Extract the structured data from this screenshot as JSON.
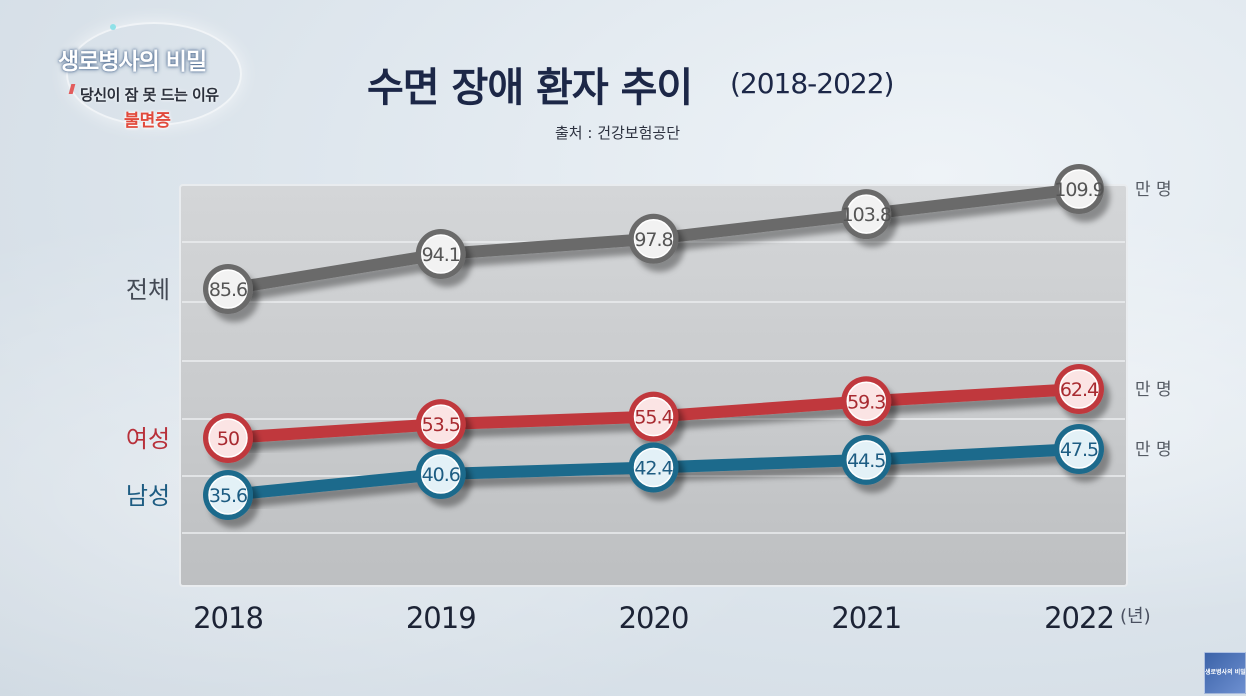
{
  "program": {
    "title": "생로병사의 비밀",
    "subtitle": "당신이 잠 못 드는 이유",
    "topic": "불면증"
  },
  "page_title": "수면 장애 환자 추이",
  "title_range": "(2018-2022)",
  "source": "출처 : 건강보험공단",
  "thumbnail_label": "생로병사의 비밀",
  "colors": {
    "total": "#6a6a6a",
    "female": "#c0393d",
    "male": "#1d6a8c",
    "female_label": "#b8303a",
    "male_label": "#1d5c82",
    "total_label": "#444a55"
  },
  "chart_data": {
    "type": "line",
    "title": "수면 장애 환자 추이",
    "xlabel": "(년)",
    "ylabel": "",
    "x": [
      "2018",
      "2019",
      "2020",
      "2021",
      "2022"
    ],
    "x_unit": "(년)",
    "grid": true,
    "series": [
      {
        "name": "전체",
        "key": "total",
        "unit": "만 명",
        "values": [
          85.6,
          94.1,
          97.8,
          103.8,
          109.9
        ]
      },
      {
        "name": "여성",
        "key": "female",
        "unit": "만 명",
        "values": [
          50,
          53.5,
          55.4,
          59.3,
          62.4
        ]
      },
      {
        "name": "남성",
        "key": "male",
        "unit": "만 명",
        "values": [
          35.6,
          40.6,
          42.4,
          44.5,
          47.5
        ]
      }
    ]
  }
}
